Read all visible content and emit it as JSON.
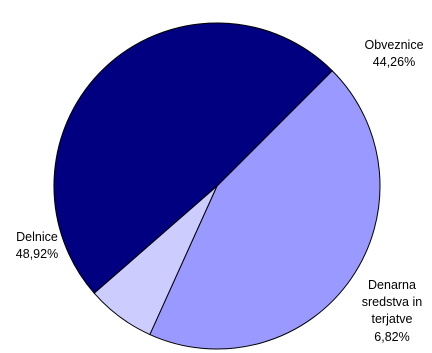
{
  "chart_data": {
    "type": "pie",
    "slices": [
      {
        "label": "Obveznice",
        "value": 44.26,
        "value_label": "44,26%",
        "color": "#9999FF"
      },
      {
        "label": "Denarna sredstva in terjatve",
        "label_lines": [
          "Denarna",
          "sredstva in",
          "terjatve"
        ],
        "value": 6.82,
        "value_label": "6,82%",
        "color": "#CCCCFF"
      },
      {
        "label": "Delnice",
        "value": 48.92,
        "value_label": "48,92%",
        "color": "#000080"
      }
    ],
    "stroke_color": "#000000",
    "legend": "none"
  }
}
